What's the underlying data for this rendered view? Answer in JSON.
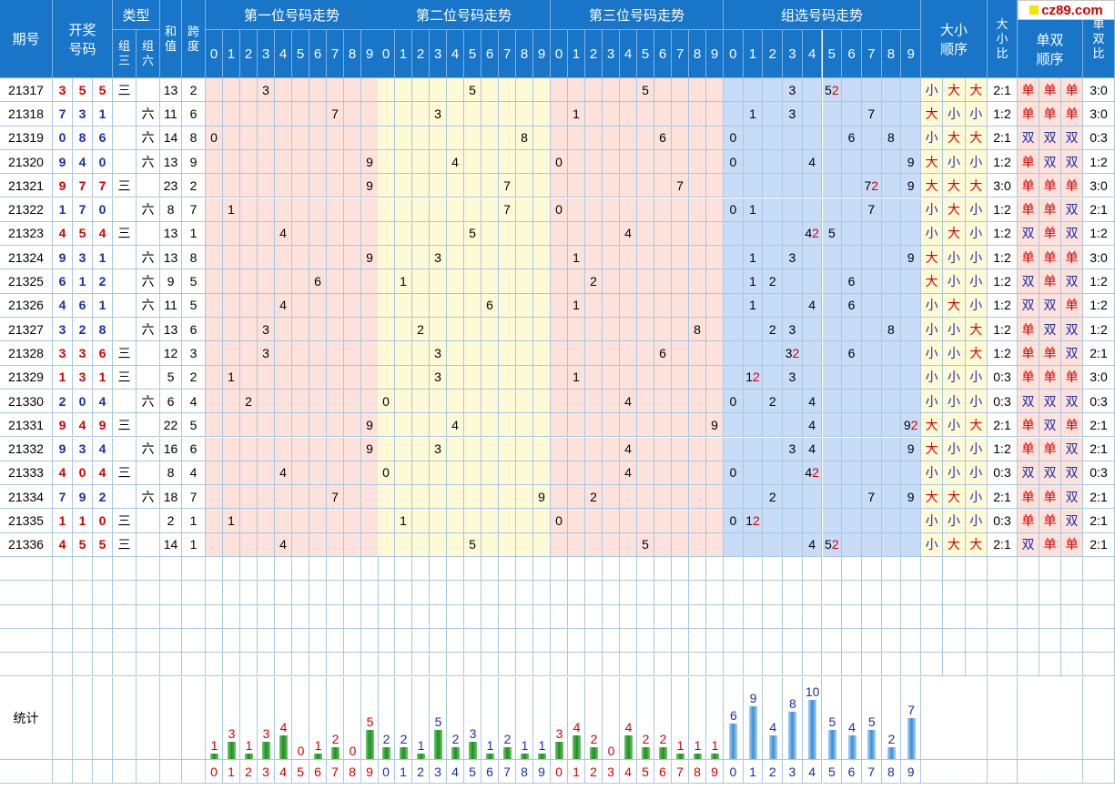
{
  "headers": {
    "period": "期号",
    "draw": "开奖\n号码",
    "type": "类型",
    "type_g3": "组\n三",
    "type_g6": "组\n六",
    "sum": "和\n值",
    "span": "跨\n度",
    "pos1": "第一位号码走势",
    "pos2": "第二位号码走势",
    "pos3": "第三位号码走势",
    "group": "组选号码走势",
    "bigsmall_order": "大小\n顺序",
    "bigsmall_ratio": "大\n小\n比",
    "oddeven_order": "单双\n顺序",
    "oddeven_ratio": "单\n双\n比"
  },
  "digits": [
    "0",
    "1",
    "2",
    "3",
    "4",
    "5",
    "6",
    "7",
    "8",
    "9"
  ],
  "g3_mark": "三",
  "g6_mark": "六",
  "rows": [
    {
      "period": "21317",
      "nums": [
        "3",
        "5",
        "5"
      ],
      "type": "三",
      "sum": "13",
      "span": "2",
      "bs": [
        "小",
        "大",
        "大"
      ],
      "bsr": "2:1",
      "oe": [
        "单",
        "单",
        "单"
      ],
      "oer": "3:0",
      "grp": {
        "3": "3",
        "5": "52"
      }
    },
    {
      "period": "21318",
      "nums": [
        "7",
        "3",
        "1"
      ],
      "type": "六",
      "sum": "11",
      "span": "6",
      "bs": [
        "大",
        "小",
        "小"
      ],
      "bsr": "1:2",
      "oe": [
        "单",
        "单",
        "单"
      ],
      "oer": "3:0",
      "grp": {
        "1": "1",
        "3": "3",
        "7": "7"
      }
    },
    {
      "period": "21319",
      "nums": [
        "0",
        "8",
        "6"
      ],
      "type": "六",
      "sum": "14",
      "span": "8",
      "bs": [
        "小",
        "大",
        "大"
      ],
      "bsr": "2:1",
      "oe": [
        "双",
        "双",
        "双"
      ],
      "oer": "0:3",
      "grp": {
        "0": "0",
        "6": "6",
        "8": "8"
      }
    },
    {
      "period": "21320",
      "nums": [
        "9",
        "4",
        "0"
      ],
      "type": "六",
      "sum": "13",
      "span": "9",
      "bs": [
        "大",
        "小",
        "小"
      ],
      "bsr": "1:2",
      "oe": [
        "单",
        "双",
        "双"
      ],
      "oer": "1:2",
      "grp": {
        "0": "0",
        "4": "4",
        "9": "9"
      }
    },
    {
      "period": "21321",
      "nums": [
        "9",
        "7",
        "7"
      ],
      "type": "三",
      "sum": "23",
      "span": "2",
      "bs": [
        "大",
        "大",
        "大"
      ],
      "bsr": "3:0",
      "oe": [
        "单",
        "单",
        "单"
      ],
      "oer": "3:0",
      "grp": {
        "7": "72",
        "9": "9"
      }
    },
    {
      "period": "21322",
      "nums": [
        "1",
        "7",
        "0"
      ],
      "type": "六",
      "sum": "8",
      "span": "7",
      "bs": [
        "小",
        "大",
        "小"
      ],
      "bsr": "1:2",
      "oe": [
        "单",
        "单",
        "双"
      ],
      "oer": "2:1",
      "grp": {
        "0": "0",
        "1": "1",
        "7": "7"
      }
    },
    {
      "period": "21323",
      "nums": [
        "4",
        "5",
        "4"
      ],
      "type": "三",
      "sum": "13",
      "span": "1",
      "bs": [
        "小",
        "大",
        "小"
      ],
      "bsr": "1:2",
      "oe": [
        "双",
        "单",
        "双"
      ],
      "oer": "1:2",
      "grp": {
        "4": "42",
        "5": "5"
      }
    },
    {
      "period": "21324",
      "nums": [
        "9",
        "3",
        "1"
      ],
      "type": "六",
      "sum": "13",
      "span": "8",
      "bs": [
        "大",
        "小",
        "小"
      ],
      "bsr": "1:2",
      "oe": [
        "单",
        "单",
        "单"
      ],
      "oer": "3:0",
      "grp": {
        "1": "1",
        "3": "3",
        "9": "9"
      }
    },
    {
      "period": "21325",
      "nums": [
        "6",
        "1",
        "2"
      ],
      "type": "六",
      "sum": "9",
      "span": "5",
      "bs": [
        "大",
        "小",
        "小"
      ],
      "bsr": "1:2",
      "oe": [
        "双",
        "单",
        "双"
      ],
      "oer": "1:2",
      "grp": {
        "1": "1",
        "2": "2",
        "6": "6"
      }
    },
    {
      "period": "21326",
      "nums": [
        "4",
        "6",
        "1"
      ],
      "type": "六",
      "sum": "11",
      "span": "5",
      "bs": [
        "小",
        "大",
        "小"
      ],
      "bsr": "1:2",
      "oe": [
        "双",
        "双",
        "单"
      ],
      "oer": "1:2",
      "grp": {
        "1": "1",
        "4": "4",
        "6": "6"
      }
    },
    {
      "period": "21327",
      "nums": [
        "3",
        "2",
        "8"
      ],
      "type": "六",
      "sum": "13",
      "span": "6",
      "bs": [
        "小",
        "小",
        "大"
      ],
      "bsr": "1:2",
      "oe": [
        "单",
        "双",
        "双"
      ],
      "oer": "1:2",
      "grp": {
        "2": "2",
        "3": "3",
        "8": "8"
      }
    },
    {
      "period": "21328",
      "nums": [
        "3",
        "3",
        "6"
      ],
      "type": "三",
      "sum": "12",
      "span": "3",
      "bs": [
        "小",
        "小",
        "大"
      ],
      "bsr": "1:2",
      "oe": [
        "单",
        "单",
        "双"
      ],
      "oer": "2:1",
      "grp": {
        "3": "32",
        "6": "6"
      }
    },
    {
      "period": "21329",
      "nums": [
        "1",
        "3",
        "1"
      ],
      "type": "三",
      "sum": "5",
      "span": "2",
      "bs": [
        "小",
        "小",
        "小"
      ],
      "bsr": "0:3",
      "oe": [
        "单",
        "单",
        "单"
      ],
      "oer": "3:0",
      "grp": {
        "1": "12",
        "3": "3"
      }
    },
    {
      "period": "21330",
      "nums": [
        "2",
        "0",
        "4"
      ],
      "type": "六",
      "sum": "6",
      "span": "4",
      "bs": [
        "小",
        "小",
        "小"
      ],
      "bsr": "0:3",
      "oe": [
        "双",
        "双",
        "双"
      ],
      "oer": "0:3",
      "grp": {
        "0": "0",
        "2": "2",
        "4": "4"
      }
    },
    {
      "period": "21331",
      "nums": [
        "9",
        "4",
        "9"
      ],
      "type": "三",
      "sum": "22",
      "span": "5",
      "bs": [
        "大",
        "小",
        "大"
      ],
      "bsr": "2:1",
      "oe": [
        "单",
        "双",
        "单"
      ],
      "oer": "2:1",
      "grp": {
        "4": "4",
        "9": "92"
      }
    },
    {
      "period": "21332",
      "nums": [
        "9",
        "3",
        "4"
      ],
      "type": "六",
      "sum": "16",
      "span": "6",
      "bs": [
        "大",
        "小",
        "小"
      ],
      "bsr": "1:2",
      "oe": [
        "单",
        "单",
        "双"
      ],
      "oer": "2:1",
      "grp": {
        "3": "3",
        "4": "4",
        "9": "9"
      }
    },
    {
      "period": "21333",
      "nums": [
        "4",
        "0",
        "4"
      ],
      "type": "三",
      "sum": "8",
      "span": "4",
      "bs": [
        "小",
        "小",
        "小"
      ],
      "bsr": "0:3",
      "oe": [
        "双",
        "双",
        "双"
      ],
      "oer": "0:3",
      "grp": {
        "0": "0",
        "4": "42"
      }
    },
    {
      "period": "21334",
      "nums": [
        "7",
        "9",
        "2"
      ],
      "type": "六",
      "sum": "18",
      "span": "7",
      "bs": [
        "大",
        "大",
        "小"
      ],
      "bsr": "2:1",
      "oe": [
        "单",
        "单",
        "双"
      ],
      "oer": "2:1",
      "grp": {
        "2": "2",
        "7": "7",
        "9": "9"
      }
    },
    {
      "period": "21335",
      "nums": [
        "1",
        "1",
        "0"
      ],
      "type": "三",
      "sum": "2",
      "span": "1",
      "bs": [
        "小",
        "小",
        "小"
      ],
      "bsr": "0:3",
      "oe": [
        "单",
        "单",
        "双"
      ],
      "oer": "2:1",
      "grp": {
        "0": "0",
        "1": "12"
      }
    },
    {
      "period": "21336",
      "nums": [
        "4",
        "5",
        "5"
      ],
      "type": "三",
      "sum": "14",
      "span": "1",
      "bs": [
        "小",
        "大",
        "大"
      ],
      "bsr": "2:1",
      "oe": [
        "双",
        "单",
        "单"
      ],
      "oer": "2:1",
      "grp": {
        "4": "4",
        "5": "52"
      }
    }
  ],
  "stats": {
    "label": "统计",
    "pos1": [
      "1",
      "3",
      "1",
      "3",
      "4",
      "0",
      "1",
      "2",
      "0",
      "5"
    ],
    "pos2": [
      "2",
      "2",
      "1",
      "5",
      "2",
      "3",
      "1",
      "2",
      "1",
      "1"
    ],
    "pos3": [
      "3",
      "4",
      "2",
      "0",
      "4",
      "2",
      "2",
      "1",
      "1",
      "1"
    ],
    "group": [
      "6",
      "9",
      "4",
      "8",
      "10",
      "5",
      "4",
      "5",
      "2",
      "7"
    ]
  },
  "colors": {
    "header": "#1875c8",
    "pos1_bg": "#fde2dc",
    "pos2_bg": "#fffad6",
    "pos3_bg": "#fde2dc",
    "group_bg": "#c8dcf7",
    "highlight_red": "#d40000",
    "blue_text": "#1a2ea8"
  },
  "logo": "cz89.com"
}
